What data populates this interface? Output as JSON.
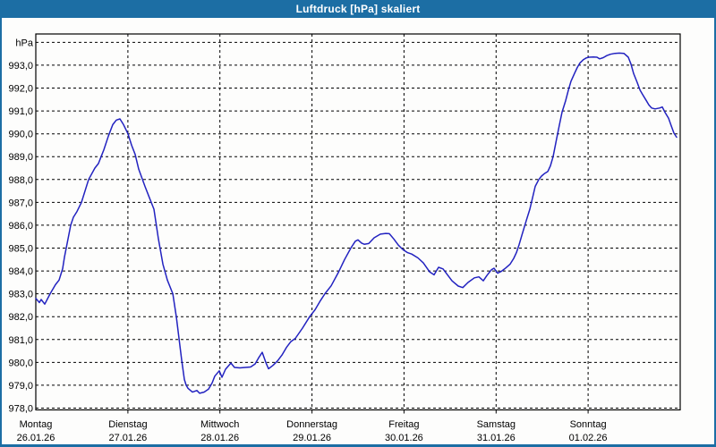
{
  "window": {
    "title": "Luftdruck [hPa] skaliert"
  },
  "colors": {
    "title_bar": "#1C6EA4",
    "window_border": "#1C6EA4",
    "background": "#FDFDFC",
    "grid": "#000000",
    "text": "#000000",
    "line": "#2222C0"
  },
  "chart_data": {
    "type": "line",
    "title": "Luftdruck [hPa] skaliert",
    "unit": "hPa",
    "ylim": [
      978,
      994.4
    ],
    "grid": true,
    "legend": "none",
    "y_ticks": [
      {
        "value": 994,
        "label": "hPa"
      },
      {
        "value": 993,
        "label": "993,0"
      },
      {
        "value": 992,
        "label": "992,0"
      },
      {
        "value": 991,
        "label": "991,0"
      },
      {
        "value": 990,
        "label": "990,0"
      },
      {
        "value": 989,
        "label": "989,0"
      },
      {
        "value": 988,
        "label": "988,0"
      },
      {
        "value": 987,
        "label": "987,0"
      },
      {
        "value": 986,
        "label": "986,0"
      },
      {
        "value": 985,
        "label": "985,0"
      },
      {
        "value": 984,
        "label": "984,0"
      },
      {
        "value": 983,
        "label": "983,0"
      },
      {
        "value": 982,
        "label": "982,0"
      },
      {
        "value": 981,
        "label": "981,0"
      },
      {
        "value": 980,
        "label": "980,0"
      },
      {
        "value": 979,
        "label": "979,0"
      },
      {
        "value": 978,
        "label": "978,0"
      }
    ],
    "x_axis": {
      "days": [
        {
          "name": "Montag",
          "date": "26.01.26"
        },
        {
          "name": "Dienstag",
          "date": "27.01.26"
        },
        {
          "name": "Mittwoch",
          "date": "28.01.26"
        },
        {
          "name": "Donnerstag",
          "date": "29.01.26"
        },
        {
          "name": "Freitag",
          "date": "30.01.26"
        },
        {
          "name": "Samstag",
          "date": "31.01.26"
        },
        {
          "name": "Sonntag",
          "date": "01.02.26"
        }
      ]
    },
    "series": [
      {
        "name": "Luftdruck",
        "color": "#2222C0",
        "points": [
          [
            0.0,
            982.8
          ],
          [
            0.039,
            982.62
          ],
          [
            0.058,
            982.75
          ],
          [
            0.097,
            982.55
          ],
          [
            0.156,
            983.0
          ],
          [
            0.214,
            983.4
          ],
          [
            0.253,
            983.6
          ],
          [
            0.292,
            984.1
          ],
          [
            0.311,
            984.6
          ],
          [
            0.34,
            985.2
          ],
          [
            0.379,
            986.0
          ],
          [
            0.408,
            986.35
          ],
          [
            0.447,
            986.6
          ],
          [
            0.496,
            987.0
          ],
          [
            0.574,
            988.0
          ],
          [
            0.642,
            988.5
          ],
          [
            0.681,
            988.7
          ],
          [
            0.71,
            989.0
          ],
          [
            0.739,
            989.3
          ],
          [
            0.788,
            989.9
          ],
          [
            0.836,
            990.4
          ],
          [
            0.875,
            990.6
          ],
          [
            0.914,
            990.65
          ],
          [
            0.953,
            990.4
          ],
          [
            1.001,
            990.0
          ],
          [
            1.04,
            989.5
          ],
          [
            1.079,
            989.1
          ],
          [
            1.118,
            988.45
          ],
          [
            1.186,
            987.7
          ],
          [
            1.235,
            987.2
          ],
          [
            1.283,
            986.7
          ],
          [
            1.332,
            985.4
          ],
          [
            1.381,
            984.3
          ],
          [
            1.429,
            983.6
          ],
          [
            1.488,
            983.0
          ],
          [
            1.526,
            982.0
          ],
          [
            1.556,
            981.05
          ],
          [
            1.585,
            980.1
          ],
          [
            1.614,
            979.25
          ],
          [
            1.633,
            979.0
          ],
          [
            1.653,
            978.87
          ],
          [
            1.701,
            978.7
          ],
          [
            1.75,
            978.77
          ],
          [
            1.779,
            978.65
          ],
          [
            1.828,
            978.7
          ],
          [
            1.876,
            978.83
          ],
          [
            1.915,
            979.1
          ],
          [
            1.944,
            979.4
          ],
          [
            1.993,
            979.63
          ],
          [
            2.022,
            979.35
          ],
          [
            2.061,
            979.7
          ],
          [
            2.119,
            979.97
          ],
          [
            2.158,
            979.78
          ],
          [
            2.217,
            979.76
          ],
          [
            2.275,
            979.78
          ],
          [
            2.333,
            979.8
          ],
          [
            2.382,
            979.93
          ],
          [
            2.421,
            980.2
          ],
          [
            2.46,
            980.44
          ],
          [
            2.499,
            980.0
          ],
          [
            2.528,
            979.72
          ],
          [
            2.576,
            979.87
          ],
          [
            2.625,
            980.06
          ],
          [
            2.674,
            980.32
          ],
          [
            2.722,
            980.65
          ],
          [
            2.771,
            980.91
          ],
          [
            2.819,
            981.05
          ],
          [
            2.897,
            981.5
          ],
          [
            2.975,
            982.0
          ],
          [
            3.033,
            982.3
          ],
          [
            3.092,
            982.7
          ],
          [
            3.14,
            983.0
          ],
          [
            3.208,
            983.35
          ],
          [
            3.286,
            983.93
          ],
          [
            3.354,
            984.5
          ],
          [
            3.422,
            985.0
          ],
          [
            3.471,
            985.3
          ],
          [
            3.5,
            985.36
          ],
          [
            3.539,
            985.22
          ],
          [
            3.568,
            985.17
          ],
          [
            3.617,
            985.2
          ],
          [
            3.675,
            985.45
          ],
          [
            3.743,
            985.61
          ],
          [
            3.801,
            985.64
          ],
          [
            3.84,
            985.63
          ],
          [
            3.889,
            985.4
          ],
          [
            3.938,
            985.13
          ],
          [
            3.986,
            984.94
          ],
          [
            4.035,
            984.81
          ],
          [
            4.083,
            984.74
          ],
          [
            4.151,
            984.57
          ],
          [
            4.21,
            984.35
          ],
          [
            4.278,
            983.96
          ],
          [
            4.326,
            983.83
          ],
          [
            4.375,
            984.16
          ],
          [
            4.424,
            984.09
          ],
          [
            4.472,
            983.83
          ],
          [
            4.521,
            983.57
          ],
          [
            4.589,
            983.34
          ],
          [
            4.638,
            983.27
          ],
          [
            4.696,
            983.5
          ],
          [
            4.764,
            983.7
          ],
          [
            4.813,
            983.74
          ],
          [
            4.861,
            983.57
          ],
          [
            4.9,
            983.8
          ],
          [
            4.949,
            984.05
          ],
          [
            4.978,
            984.12
          ],
          [
            5.017,
            983.9
          ],
          [
            5.056,
            983.98
          ],
          [
            5.104,
            984.13
          ],
          [
            5.153,
            984.3
          ],
          [
            5.192,
            984.55
          ],
          [
            5.221,
            984.8
          ],
          [
            5.25,
            985.15
          ],
          [
            5.279,
            985.55
          ],
          [
            5.328,
            986.2
          ],
          [
            5.367,
            986.7
          ],
          [
            5.396,
            987.2
          ],
          [
            5.425,
            987.7
          ],
          [
            5.464,
            988.0
          ],
          [
            5.493,
            988.15
          ],
          [
            5.522,
            988.25
          ],
          [
            5.561,
            988.35
          ],
          [
            5.59,
            988.6
          ],
          [
            5.619,
            989.0
          ],
          [
            5.658,
            989.8
          ],
          [
            5.688,
            990.4
          ],
          [
            5.717,
            990.95
          ],
          [
            5.756,
            991.45
          ],
          [
            5.785,
            991.9
          ],
          [
            5.814,
            992.3
          ],
          [
            5.853,
            992.65
          ],
          [
            5.882,
            992.9
          ],
          [
            5.911,
            993.1
          ],
          [
            5.95,
            993.25
          ],
          [
            5.979,
            993.32
          ],
          [
            6.008,
            993.35
          ],
          [
            6.057,
            993.36
          ],
          [
            6.096,
            993.35
          ],
          [
            6.125,
            993.28
          ],
          [
            6.164,
            993.33
          ],
          [
            6.203,
            993.42
          ],
          [
            6.242,
            993.48
          ],
          [
            6.29,
            993.52
          ],
          [
            6.339,
            993.53
          ],
          [
            6.388,
            993.52
          ],
          [
            6.436,
            993.35
          ],
          [
            6.465,
            993.05
          ],
          [
            6.494,
            992.63
          ],
          [
            6.533,
            992.24
          ],
          [
            6.563,
            991.91
          ],
          [
            6.592,
            991.72
          ],
          [
            6.631,
            991.46
          ],
          [
            6.66,
            991.26
          ],
          [
            6.689,
            991.13
          ],
          [
            6.728,
            991.09
          ],
          [
            6.776,
            991.13
          ],
          [
            6.806,
            991.17
          ],
          [
            6.835,
            990.94
          ],
          [
            6.874,
            990.68
          ],
          [
            6.903,
            990.35
          ],
          [
            6.932,
            990.03
          ],
          [
            6.961,
            989.85
          ]
        ]
      }
    ]
  }
}
